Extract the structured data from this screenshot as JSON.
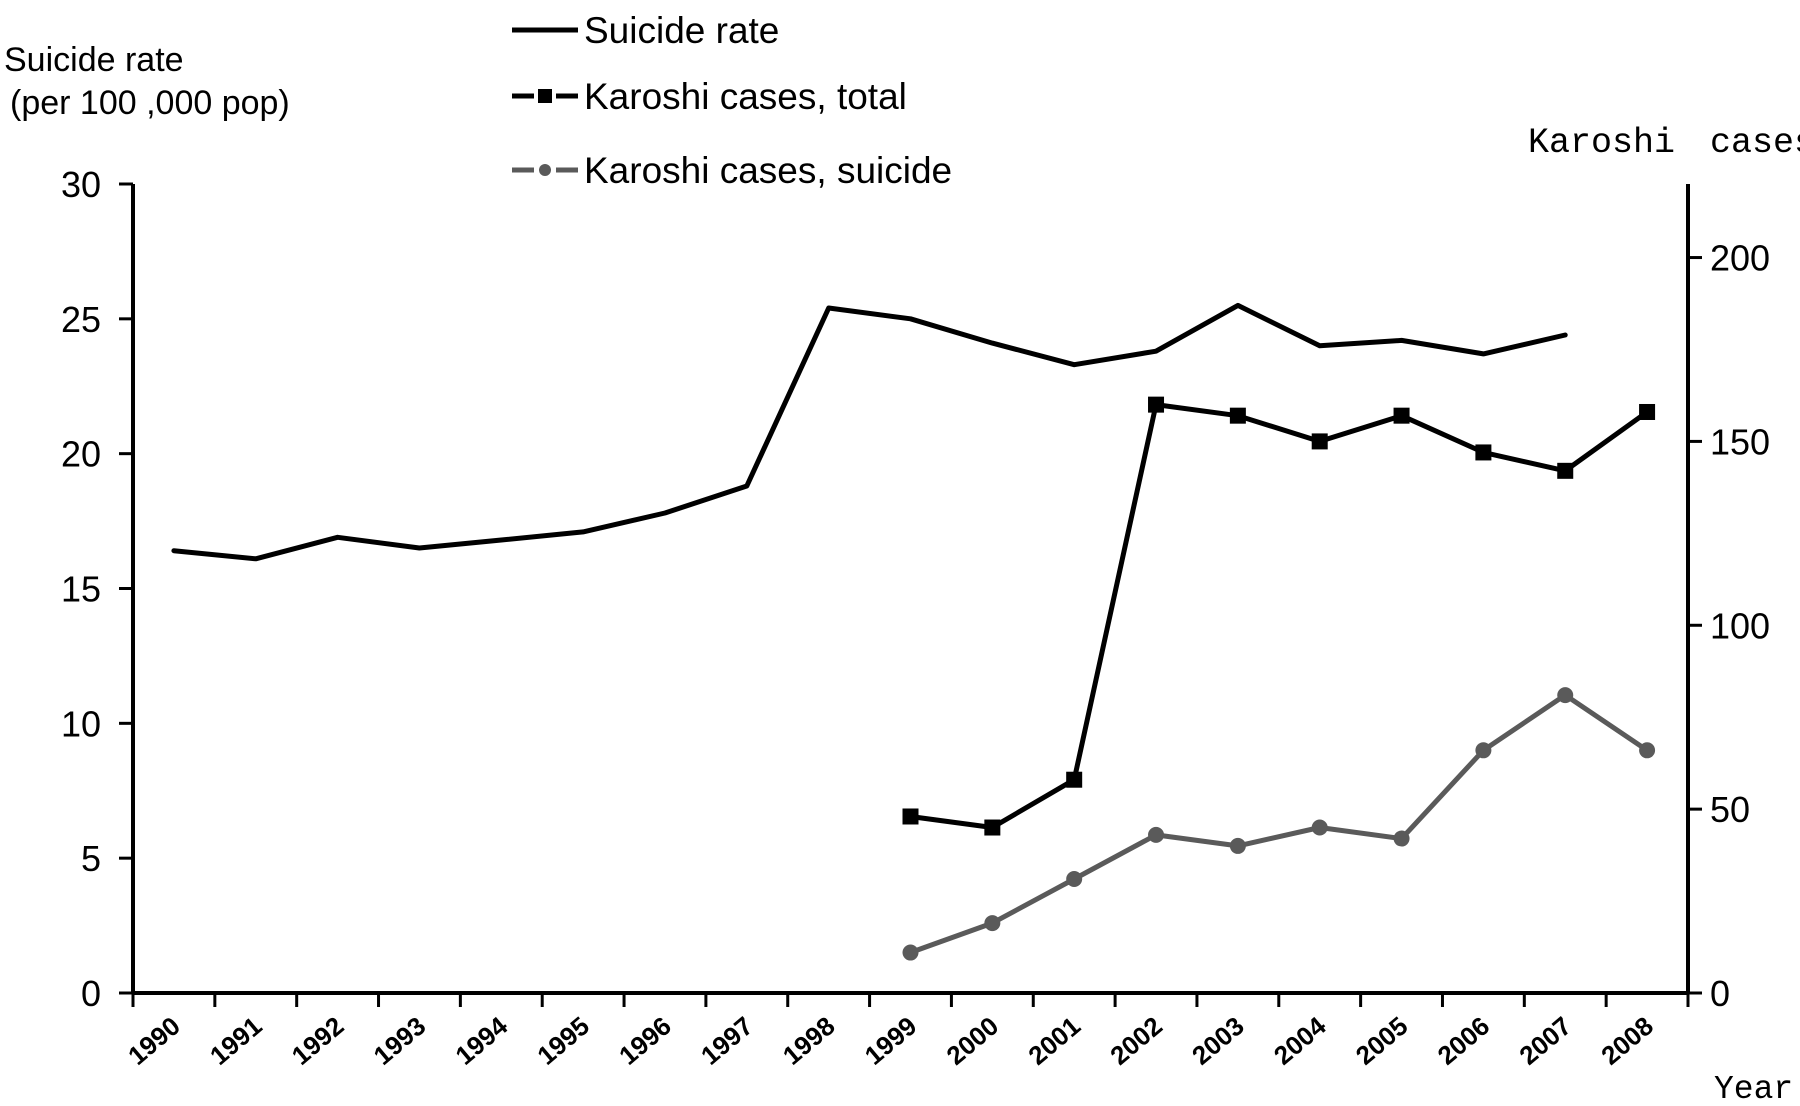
{
  "chart_data": {
    "type": "line",
    "categories": [
      "1990",
      "1991",
      "1992",
      "1993",
      "1994",
      "1995",
      "1996",
      "1997",
      "1998",
      "1999",
      "2000",
      "2001",
      "2002",
      "2003",
      "2004",
      "2005",
      "2006",
      "2007",
      "2008"
    ],
    "series": [
      {
        "name": "Suicide rate",
        "axis": "left",
        "values": [
          16.4,
          16.1,
          16.9,
          16.5,
          16.8,
          17.1,
          17.8,
          18.8,
          25.4,
          25.0,
          24.1,
          23.3,
          23.8,
          25.5,
          24.0,
          24.2,
          23.7,
          24.4,
          null
        ],
        "style": "solid",
        "color": "#000000"
      },
      {
        "name": "Karoshi cases, total",
        "axis": "right",
        "values": [
          null,
          null,
          null,
          null,
          null,
          null,
          null,
          null,
          null,
          48,
          45,
          58,
          160,
          157,
          150,
          157,
          147,
          142,
          158
        ],
        "style": "dashed",
        "marker": "square",
        "color": "#000000"
      },
      {
        "name": "Karoshi cases, suicide",
        "axis": "right",
        "values": [
          null,
          null,
          null,
          null,
          null,
          null,
          null,
          null,
          null,
          11,
          19,
          31,
          43,
          40,
          45,
          42,
          66,
          81,
          66
        ],
        "style": "dashed",
        "marker": "circle",
        "color": "#5a5a5a"
      }
    ],
    "ylabel_left_line1": "Suicide rate",
    "ylabel_left_line2": "(per 100 ,000 pop)",
    "ylabel_right": "Karoshi　cases",
    "xlabel": "Year",
    "ylim_left": [
      0,
      30
    ],
    "ylim_right": [
      0,
      220
    ],
    "yticks_left": [
      "0",
      "5",
      "10",
      "15",
      "20",
      "25",
      "30"
    ],
    "yticks_right": [
      "0",
      "50",
      "100",
      "150",
      "200"
    ],
    "grid": false,
    "legend_position": "top-center"
  }
}
